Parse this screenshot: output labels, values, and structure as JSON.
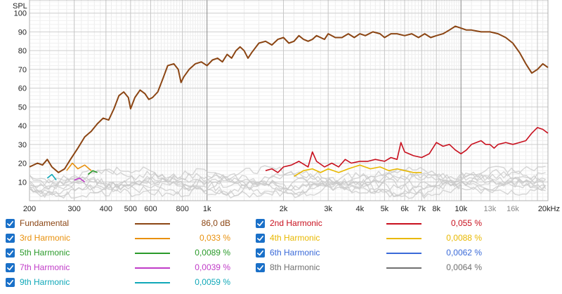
{
  "chart_data": {
    "type": "line",
    "ylabel": "SPL",
    "xscale": "log",
    "xlim": [
      200,
      22000
    ],
    "ylim": [
      0,
      107
    ],
    "yticks": [
      10,
      20,
      30,
      40,
      50,
      60,
      70,
      80,
      90,
      100
    ],
    "xticks": [
      {
        "value": 200,
        "label": "200"
      },
      {
        "value": 300,
        "label": "300"
      },
      {
        "value": 400,
        "label": "400"
      },
      {
        "value": 500,
        "label": "500"
      },
      {
        "value": 600,
        "label": "600"
      },
      {
        "value": 800,
        "label": "800"
      },
      {
        "value": 1000,
        "label": "1k"
      },
      {
        "value": 2000,
        "label": "2k"
      },
      {
        "value": 3000,
        "label": "3k"
      },
      {
        "value": 4000,
        "label": "4k"
      },
      {
        "value": 5000,
        "label": "5k"
      },
      {
        "value": 6000,
        "label": "6k"
      },
      {
        "value": 7000,
        "label": "7k"
      },
      {
        "value": 8000,
        "label": "8k"
      },
      {
        "value": 10000,
        "label": "10k"
      },
      {
        "value": 13000,
        "label": "13k"
      },
      {
        "value": 16000,
        "label": "16k"
      },
      {
        "value": 20000,
        "label": "20kHz"
      }
    ],
    "grid": true,
    "legend_position": "bottom",
    "series": [
      {
        "name": "Fundamental",
        "color": "#8b4513",
        "value": "86,0 dB",
        "value_color": "#8b4513",
        "points": [
          [
            200,
            18
          ],
          [
            215,
            20
          ],
          [
            225,
            19
          ],
          [
            235,
            22
          ],
          [
            245,
            18
          ],
          [
            260,
            15
          ],
          [
            275,
            17
          ],
          [
            290,
            22
          ],
          [
            310,
            28
          ],
          [
            330,
            34
          ],
          [
            350,
            37
          ],
          [
            370,
            41
          ],
          [
            390,
            44
          ],
          [
            410,
            43
          ],
          [
            430,
            49
          ],
          [
            450,
            56
          ],
          [
            470,
            58
          ],
          [
            490,
            55
          ],
          [
            500,
            49
          ],
          [
            520,
            55
          ],
          [
            545,
            59
          ],
          [
            570,
            57
          ],
          [
            590,
            54
          ],
          [
            610,
            55
          ],
          [
            640,
            58
          ],
          [
            670,
            65
          ],
          [
            700,
            72
          ],
          [
            740,
            73
          ],
          [
            770,
            70
          ],
          [
            790,
            63
          ],
          [
            810,
            66
          ],
          [
            850,
            70
          ],
          [
            900,
            73
          ],
          [
            950,
            74
          ],
          [
            1000,
            72
          ],
          [
            1050,
            75
          ],
          [
            1100,
            76
          ],
          [
            1150,
            74
          ],
          [
            1200,
            78
          ],
          [
            1250,
            76
          ],
          [
            1300,
            80
          ],
          [
            1350,
            82
          ],
          [
            1400,
            80
          ],
          [
            1450,
            76
          ],
          [
            1500,
            79
          ],
          [
            1600,
            84
          ],
          [
            1700,
            85
          ],
          [
            1800,
            83
          ],
          [
            1900,
            86
          ],
          [
            2000,
            87
          ],
          [
            2100,
            84
          ],
          [
            2200,
            85
          ],
          [
            2300,
            88
          ],
          [
            2400,
            86
          ],
          [
            2500,
            85
          ],
          [
            2600,
            86
          ],
          [
            2700,
            88
          ],
          [
            2900,
            86
          ],
          [
            3000,
            89
          ],
          [
            3200,
            87
          ],
          [
            3400,
            87
          ],
          [
            3600,
            89
          ],
          [
            3800,
            87
          ],
          [
            4000,
            89
          ],
          [
            4200,
            88
          ],
          [
            4500,
            90
          ],
          [
            4800,
            89
          ],
          [
            5000,
            87
          ],
          [
            5300,
            89
          ],
          [
            5600,
            89
          ],
          [
            6000,
            88
          ],
          [
            6400,
            89
          ],
          [
            6800,
            87
          ],
          [
            7200,
            89
          ],
          [
            7600,
            87
          ],
          [
            8000,
            88
          ],
          [
            8500,
            89
          ],
          [
            9000,
            91
          ],
          [
            9500,
            93
          ],
          [
            10000,
            92
          ],
          [
            10500,
            91
          ],
          [
            11000,
            91
          ],
          [
            12000,
            90
          ],
          [
            13000,
            90
          ],
          [
            14000,
            89
          ],
          [
            15000,
            87
          ],
          [
            16000,
            84
          ],
          [
            17000,
            79
          ],
          [
            18000,
            73
          ],
          [
            19000,
            68
          ],
          [
            20000,
            70
          ],
          [
            21000,
            73
          ],
          [
            22000,
            71
          ]
        ]
      },
      {
        "name": "2nd Harmonic",
        "color": "#c8101e",
        "value": "0,055 %",
        "value_color": "#c8101e",
        "points": [
          [
            1700,
            16
          ],
          [
            1800,
            17
          ],
          [
            1900,
            15
          ],
          [
            2000,
            18
          ],
          [
            2150,
            19
          ],
          [
            2300,
            21
          ],
          [
            2500,
            18
          ],
          [
            2600,
            26
          ],
          [
            2700,
            21
          ],
          [
            2900,
            18
          ],
          [
            3100,
            20
          ],
          [
            3300,
            18
          ],
          [
            3500,
            22
          ],
          [
            3700,
            20
          ],
          [
            4000,
            21
          ],
          [
            4300,
            21
          ],
          [
            4600,
            22
          ],
          [
            5000,
            21
          ],
          [
            5300,
            23
          ],
          [
            5600,
            22
          ],
          [
            5800,
            31
          ],
          [
            6000,
            26
          ],
          [
            6500,
            24
          ],
          [
            7000,
            23
          ],
          [
            7500,
            25
          ],
          [
            8000,
            31
          ],
          [
            8500,
            29
          ],
          [
            9000,
            30
          ],
          [
            9500,
            27
          ],
          [
            10000,
            25
          ],
          [
            10500,
            27
          ],
          [
            11000,
            30
          ],
          [
            12000,
            32
          ],
          [
            12500,
            30
          ],
          [
            13000,
            30
          ],
          [
            13500,
            28
          ],
          [
            14000,
            30
          ],
          [
            15000,
            31
          ],
          [
            16000,
            30
          ],
          [
            17000,
            31
          ],
          [
            18000,
            32
          ],
          [
            19000,
            36
          ],
          [
            20000,
            39
          ],
          [
            21000,
            38
          ],
          [
            22000,
            36
          ]
        ]
      },
      {
        "name": "3rd Harmonic",
        "color": "#e8900c",
        "value": "0,033 %",
        "value_color": "#e8900c",
        "points": [
          [
            280,
            16
          ],
          [
            295,
            20
          ],
          [
            310,
            17
          ],
          [
            330,
            19
          ],
          [
            350,
            16
          ]
        ]
      },
      {
        "name": "4th Harmonic",
        "color": "#e8b800",
        "value": "0,0088 %",
        "value_color": "#e8b800",
        "points": [
          [
            2200,
            13
          ],
          [
            2400,
            16
          ],
          [
            2600,
            17
          ],
          [
            2800,
            15
          ],
          [
            3000,
            17
          ],
          [
            3300,
            15
          ],
          [
            3600,
            17
          ],
          [
            4000,
            19
          ],
          [
            4400,
            17
          ],
          [
            4800,
            18
          ],
          [
            5200,
            16
          ],
          [
            5600,
            17
          ],
          [
            6000,
            16
          ],
          [
            6500,
            15
          ],
          [
            7000,
            15
          ]
        ]
      },
      {
        "name": "5th Harmonic",
        "color": "#2a9a2a",
        "value": "0,0089 %",
        "value_color": "#2a9a2a",
        "points": [
          [
            340,
            14
          ],
          [
            355,
            16
          ],
          [
            370,
            15
          ]
        ]
      },
      {
        "name": "6th Harmonic",
        "color": "#3a6ad8",
        "value": "0,0062 %",
        "value_color": "#3a6ad8",
        "points": []
      },
      {
        "name": "7th Harmonic",
        "color": "#c03cc8",
        "value": "0,0039 %",
        "value_color": "#c03cc8",
        "points": [
          [
            300,
            11
          ],
          [
            315,
            12
          ],
          [
            330,
            10
          ]
        ]
      },
      {
        "name": "8th Harmonic",
        "color": "#707070",
        "value": "0,0064 %",
        "value_color": "#707070",
        "points": []
      },
      {
        "name": "9th Harmonic",
        "color": "#10a8b8",
        "value": "0,0059 %",
        "value_color": "#10a8b8",
        "points": [
          [
            235,
            12
          ],
          [
            245,
            14
          ],
          [
            255,
            11
          ]
        ]
      }
    ]
  }
}
